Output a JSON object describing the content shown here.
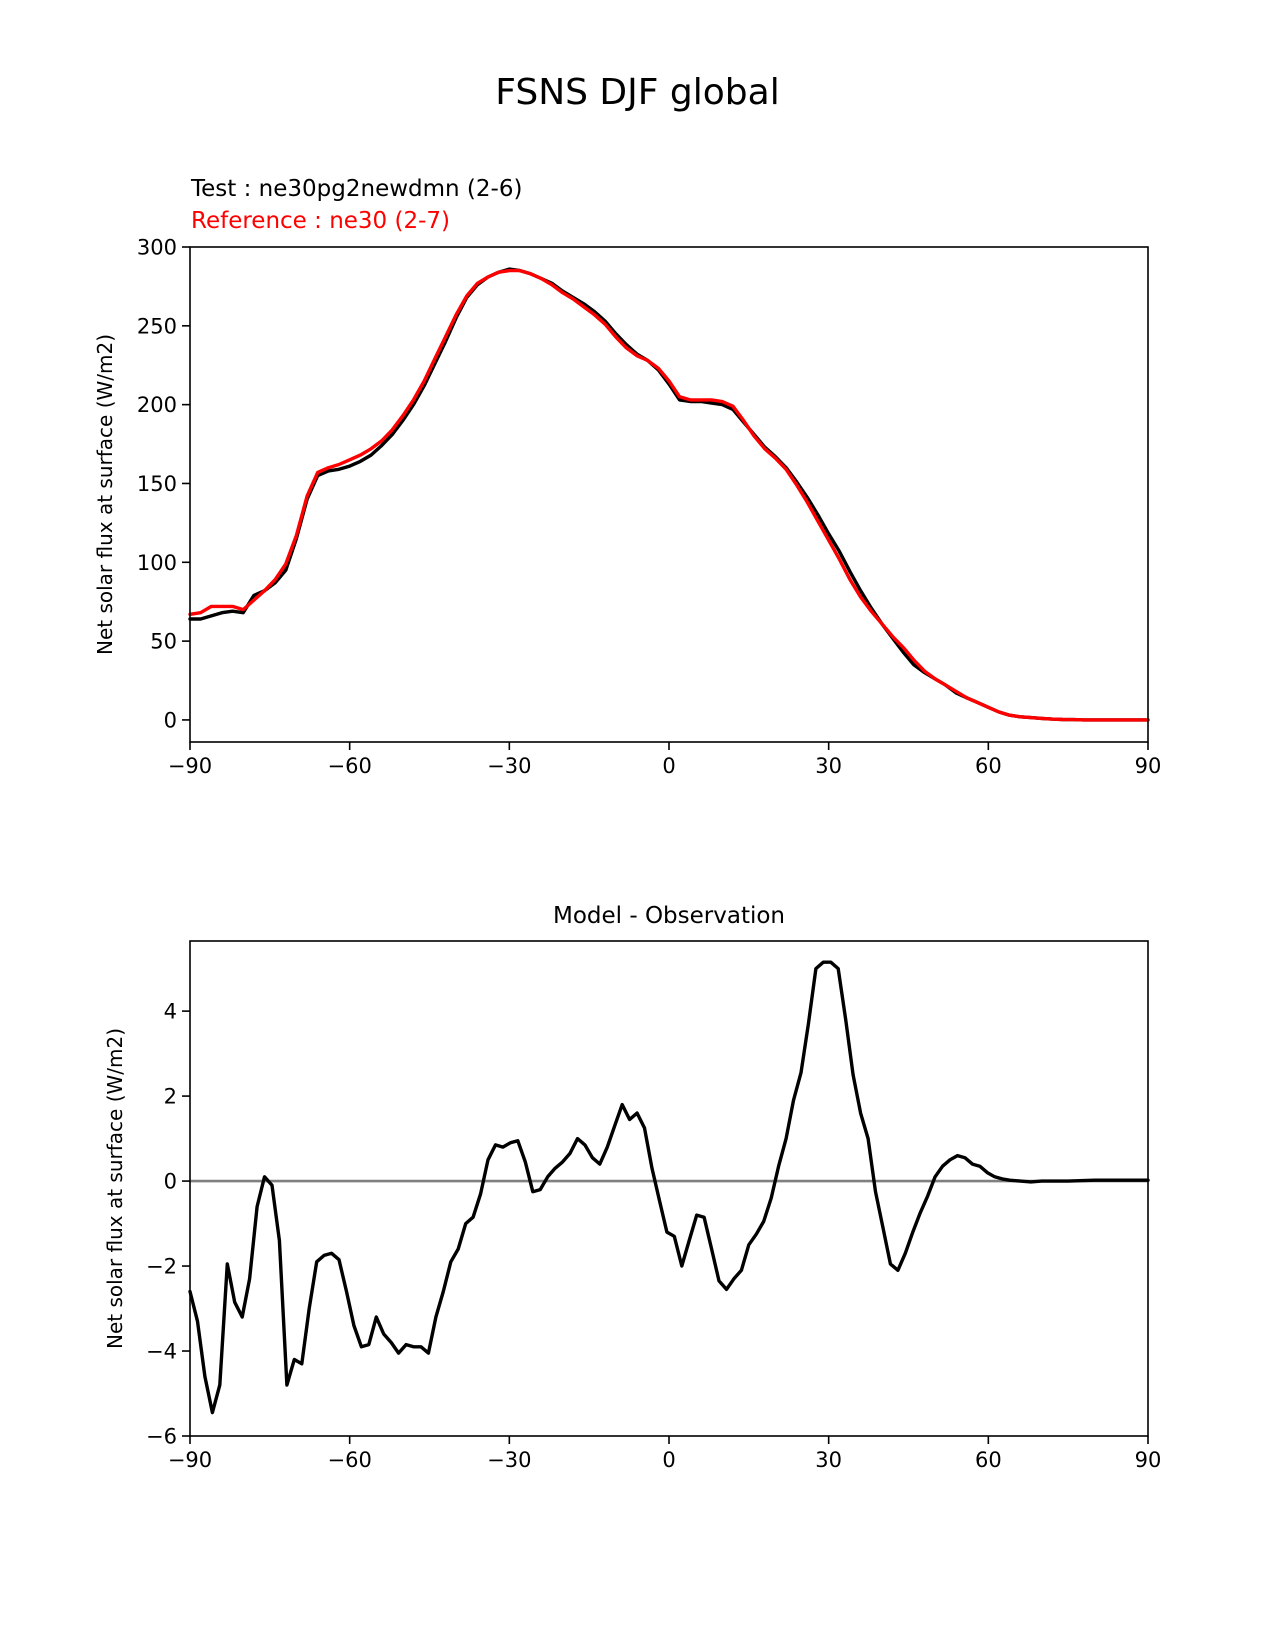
{
  "figure_title": "FSNS DJF global",
  "chart_data": [
    {
      "type": "line",
      "test_label": "Test : ne30pg2newdmn (2-6)",
      "ref_label": "Reference : ne30 (2-7)",
      "title": "",
      "xlabel": "",
      "ylabel": "Net solar flux at surface (W/m2)",
      "xlim": [
        -90,
        90
      ],
      "ylim": [
        -14,
        300
      ],
      "xticks": [
        -90,
        -60,
        -30,
        0,
        30,
        60,
        90
      ],
      "xtick_labels": [
        "−90",
        "−60",
        "−30",
        "0",
        "30",
        "60",
        "90"
      ],
      "yticks": [
        0,
        50,
        100,
        150,
        200,
        250,
        300
      ],
      "ytick_labels": [
        "0",
        "50",
        "100",
        "150",
        "200",
        "250",
        "300"
      ],
      "colors": {
        "test": "#000000",
        "reference": "#ff0000"
      },
      "series": [
        {
          "name": "test",
          "x": [
            -90,
            -88,
            -86,
            -84,
            -82,
            -80,
            -78,
            -76,
            -74,
            -72,
            -70,
            -68,
            -66,
            -64,
            -62,
            -60,
            -58,
            -56,
            -54,
            -52,
            -50,
            -48,
            -46,
            -44,
            -42,
            -40,
            -38,
            -36,
            -34,
            -32,
            -30,
            -28,
            -26,
            -24,
            -22,
            -20,
            -18,
            -16,
            -14,
            -12,
            -10,
            -8,
            -6,
            -4,
            -2,
            0,
            2,
            4,
            6,
            8,
            10,
            12,
            14,
            16,
            18,
            20,
            22,
            24,
            26,
            28,
            30,
            32,
            34,
            36,
            38,
            40,
            42,
            44,
            46,
            48,
            50,
            52,
            54,
            56,
            58,
            60,
            62,
            64,
            66,
            68,
            70,
            72,
            74,
            76,
            78,
            80,
            82,
            84,
            86,
            88,
            90
          ],
          "values": [
            64,
            64,
            66,
            68,
            69,
            68,
            79,
            82,
            87,
            95,
            115,
            140,
            155,
            158,
            159,
            161,
            164,
            168,
            174,
            181,
            190,
            200,
            212,
            226,
            240,
            255,
            268,
            276,
            281,
            284,
            286,
            285,
            283,
            280,
            277,
            272,
            268,
            264,
            259,
            253,
            245,
            238,
            232,
            228,
            222,
            213,
            203,
            202,
            202,
            201,
            200,
            197,
            189,
            181,
            173,
            167,
            160,
            151,
            141,
            130,
            118,
            107,
            94,
            82,
            71,
            61,
            52,
            43,
            35,
            30,
            26,
            22,
            17,
            14,
            11,
            8,
            5,
            3,
            2,
            1.5,
            1,
            0.5,
            0.3,
            0.2,
            0,
            0,
            0,
            0,
            0,
            0,
            0
          ]
        },
        {
          "name": "reference",
          "x": [
            -90,
            -88,
            -86,
            -84,
            -82,
            -80,
            -78,
            -76,
            -74,
            -72,
            -70,
            -68,
            -66,
            -64,
            -62,
            -60,
            -58,
            -56,
            -54,
            -52,
            -50,
            -48,
            -46,
            -44,
            -42,
            -40,
            -38,
            -36,
            -34,
            -32,
            -30,
            -28,
            -26,
            -24,
            -22,
            -20,
            -18,
            -16,
            -14,
            -12,
            -10,
            -8,
            -6,
            -4,
            -2,
            0,
            2,
            4,
            6,
            8,
            10,
            12,
            14,
            16,
            18,
            20,
            22,
            24,
            26,
            28,
            30,
            32,
            34,
            36,
            38,
            40,
            42,
            44,
            46,
            48,
            50,
            52,
            54,
            56,
            58,
            60,
            62,
            64,
            66,
            68,
            70,
            72,
            74,
            76,
            78,
            80,
            82,
            84,
            86,
            88,
            90
          ],
          "values": [
            67,
            68,
            72,
            72,
            72,
            70,
            76,
            82,
            89,
            99,
            117,
            142,
            157,
            160,
            162,
            165,
            168,
            172,
            177,
            184,
            193,
            203,
            215,
            229,
            243,
            257,
            269,
            277,
            281,
            284,
            285,
            285,
            283,
            280,
            276,
            271,
            267,
            262,
            257,
            251,
            243,
            236,
            231,
            228,
            223,
            215,
            205,
            203,
            203,
            203,
            202,
            199,
            190,
            180,
            172,
            166,
            159,
            149,
            138,
            126,
            114,
            102,
            89,
            78,
            69,
            61,
            53,
            46,
            38,
            31,
            26,
            22,
            18,
            14,
            11,
            8,
            5,
            3,
            2,
            1.5,
            1,
            0.5,
            0.3,
            0.2,
            0,
            0,
            0,
            0,
            0,
            0,
            0
          ]
        }
      ]
    },
    {
      "type": "line",
      "title": "Model - Observation",
      "xlabel": "",
      "ylabel": "Net solar flux at surface (W/m2)",
      "xlim": [
        -90,
        90
      ],
      "ylim": [
        -6,
        5.65
      ],
      "xticks": [
        -90,
        -60,
        -30,
        0,
        30,
        60,
        90
      ],
      "xtick_labels": [
        "−90",
        "−60",
        "−30",
        "0",
        "30",
        "60",
        "90"
      ],
      "yticks": [
        -6,
        -4,
        -2,
        0,
        2,
        4
      ],
      "ytick_labels": [
        "−6",
        "−4",
        "−2",
        "0",
        "2",
        "4"
      ],
      "zero_line_color": "#808080",
      "series": [
        {
          "name": "model-minus-obs",
          "color": "#000000",
          "x": [
            -90,
            -88.6,
            -87.2,
            -85.8,
            -84.4,
            -83,
            -81.6,
            -80.2,
            -78.8,
            -77.4,
            -76,
            -74.6,
            -73.2,
            -71.8,
            -70.4,
            -69,
            -67.6,
            -66.2,
            -64.8,
            -63.4,
            -62,
            -60.6,
            -59.2,
            -57.8,
            -56.4,
            -55,
            -53.6,
            -52.2,
            -50.8,
            -49.4,
            -48,
            -46.6,
            -45.2,
            -43.8,
            -42.4,
            -41,
            -39.6,
            -38.2,
            -36.8,
            -35.4,
            -34,
            -32.6,
            -31.2,
            -29.8,
            -28.4,
            -27,
            -25.6,
            -24.2,
            -22.8,
            -21.4,
            -20,
            -18.6,
            -17.2,
            -15.8,
            -14.4,
            -13,
            -11.6,
            -10.2,
            -8.8,
            -7.4,
            -6,
            -4.6,
            -3.2,
            -1.8,
            -0.4,
            1,
            2.4,
            3.8,
            5.2,
            6.6,
            8,
            9.4,
            10.8,
            12.2,
            13.6,
            15,
            16.4,
            17.8,
            19.2,
            20.6,
            22,
            23.4,
            24.8,
            26.2,
            27.6,
            29,
            30.4,
            31.8,
            33.2,
            34.6,
            36,
            37.4,
            38.8,
            40.2,
            41.6,
            43,
            44.4,
            45.8,
            47.2,
            48.6,
            50,
            51.4,
            52.8,
            54.2,
            55.6,
            57,
            58.4,
            59.8,
            61.2,
            62.6,
            64,
            66,
            68,
            70,
            75,
            80,
            85,
            90
          ],
          "values": [
            -2.6,
            -3.3,
            -4.6,
            -5.45,
            -4.8,
            -1.95,
            -2.85,
            -3.2,
            -2.3,
            -0.6,
            0.1,
            -0.1,
            -1.4,
            -4.8,
            -4.2,
            -4.3,
            -3.0,
            -1.9,
            -1.75,
            -1.7,
            -1.85,
            -2.6,
            -3.4,
            -3.9,
            -3.85,
            -3.2,
            -3.6,
            -3.8,
            -4.05,
            -3.85,
            -3.9,
            -3.9,
            -4.05,
            -3.2,
            -2.6,
            -1.9,
            -1.6,
            -1.0,
            -0.85,
            -0.3,
            0.5,
            0.85,
            0.8,
            0.9,
            0.95,
            0.45,
            -0.25,
            -0.2,
            0.1,
            0.3,
            0.45,
            0.65,
            1.0,
            0.85,
            0.55,
            0.4,
            0.8,
            1.3,
            1.8,
            1.45,
            1.6,
            1.25,
            0.3,
            -0.45,
            -1.2,
            -1.3,
            -2.0,
            -1.4,
            -0.8,
            -0.85,
            -1.6,
            -2.35,
            -2.55,
            -2.3,
            -2.1,
            -1.5,
            -1.25,
            -0.95,
            -0.4,
            0.35,
            1.0,
            1.9,
            2.55,
            3.7,
            5.0,
            5.15,
            5.15,
            5.0,
            3.8,
            2.5,
            1.6,
            1.0,
            -0.25,
            -1.1,
            -1.95,
            -2.1,
            -1.7,
            -1.2,
            -0.75,
            -0.35,
            0.1,
            0.35,
            0.5,
            0.6,
            0.55,
            0.4,
            0.35,
            0.2,
            0.1,
            0.05,
            0.02,
            0.0,
            -0.02,
            0.0,
            0.0,
            0.02,
            0.02,
            0.02
          ]
        }
      ]
    }
  ]
}
